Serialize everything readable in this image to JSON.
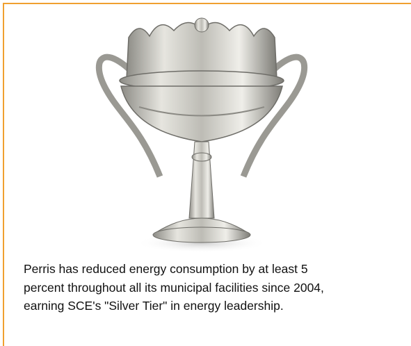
{
  "caption": {
    "lines": [
      "Perris has reduced energy consumption by at least 5",
      "percent throughout all its municipal facilities since 2004,",
      "earning SCE's \"Silver Tier\" in energy leadership."
    ]
  }
}
